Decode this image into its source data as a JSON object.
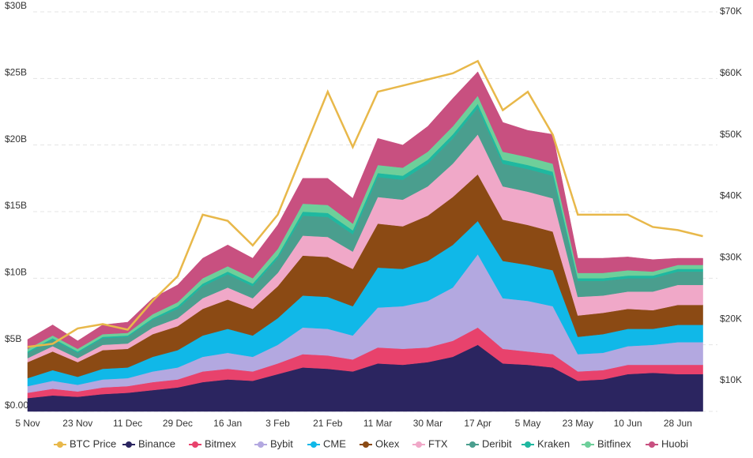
{
  "chart_data": {
    "type": "area",
    "categories": [
      "5 Nov",
      null,
      "23 Nov",
      null,
      "11 Dec",
      null,
      "29 Dec",
      null,
      "16 Jan",
      null,
      "3 Feb",
      null,
      "21 Feb",
      null,
      "11 Mar",
      null,
      "30 Mar",
      null,
      "17 Apr",
      null,
      "5 May",
      null,
      "23 May",
      null,
      "10 Jun",
      null,
      "28 Jun",
      null
    ],
    "ylim": [
      0,
      30
    ],
    "yticks": [
      {
        "value": 0,
        "label": "$0.00"
      },
      {
        "value": 5,
        "label": "$5B"
      },
      {
        "value": 10,
        "label": "$10B"
      },
      {
        "value": 15,
        "label": "$15B"
      },
      {
        "value": 20,
        "label": "$20B"
      },
      {
        "value": 25,
        "label": "$25B"
      },
      {
        "value": 30,
        "label": "$30B"
      }
    ],
    "y2lim": [
      5000,
      70000
    ],
    "y2ticks": [
      {
        "value": 10000,
        "label": "$10K"
      },
      {
        "value": 20000,
        "label": "$20K"
      },
      {
        "value": 30000,
        "label": "$30K"
      },
      {
        "value": 40000,
        "label": "$40K"
      },
      {
        "value": 50000,
        "label": "$50K"
      },
      {
        "value": 60000,
        "label": "$60K"
      },
      {
        "value": 70000,
        "label": "$70K"
      }
    ],
    "grid": true,
    "stacked": true,
    "series": [
      {
        "name": "BTC Price",
        "color": "#e8b84a",
        "axis": "y2",
        "values": [
          15500,
          16000,
          18500,
          19200,
          18300,
          23000,
          27000,
          37000,
          36000,
          32000,
          37000,
          47000,
          57000,
          48000,
          57000,
          58000,
          59000,
          60000,
          62000,
          54000,
          57000,
          50000,
          37000,
          37000,
          37000,
          35000,
          34500,
          33500
        ]
      },
      {
        "name": "Binance",
        "color": "#2b2560",
        "values": [
          1.0,
          1.2,
          1.1,
          1.3,
          1.4,
          1.6,
          1.8,
          2.2,
          2.4,
          2.3,
          2.8,
          3.3,
          3.2,
          3.0,
          3.6,
          3.5,
          3.7,
          4.1,
          5.0,
          3.6,
          3.5,
          3.3,
          2.3,
          2.4,
          2.8,
          2.9,
          2.8,
          2.8
        ]
      },
      {
        "name": "Bitmex",
        "color": "#e8426c",
        "values": [
          0.4,
          0.5,
          0.4,
          0.5,
          0.5,
          0.6,
          0.6,
          0.8,
          0.8,
          0.7,
          0.8,
          1.0,
          1.0,
          0.9,
          1.2,
          1.2,
          1.1,
          1.2,
          1.3,
          1.1,
          1.0,
          1.0,
          0.7,
          0.7,
          0.7,
          0.6,
          0.7,
          0.7
        ]
      },
      {
        "name": "Bybit",
        "color": "#b3a8e0",
        "values": [
          0.5,
          0.6,
          0.5,
          0.6,
          0.6,
          0.8,
          0.9,
          1.1,
          1.2,
          1.1,
          1.4,
          2.0,
          2.0,
          1.8,
          3.0,
          3.2,
          3.5,
          4.0,
          5.5,
          3.8,
          3.8,
          3.6,
          1.3,
          1.3,
          1.4,
          1.5,
          1.7,
          1.7
        ]
      },
      {
        "name": "CME",
        "color": "#10b8e8",
        "values": [
          0.6,
          0.8,
          0.6,
          0.8,
          0.8,
          1.1,
          1.3,
          1.6,
          1.8,
          1.6,
          2.0,
          2.4,
          2.4,
          2.2,
          3.0,
          2.8,
          3.0,
          3.2,
          2.5,
          2.8,
          2.7,
          2.7,
          1.3,
          1.4,
          1.3,
          1.2,
          1.3,
          1.3
        ]
      },
      {
        "name": "Okex",
        "color": "#8b4a14",
        "values": [
          1.2,
          1.4,
          1.1,
          1.4,
          1.4,
          1.7,
          1.8,
          2.0,
          2.2,
          2.0,
          2.4,
          3.0,
          3.0,
          2.8,
          3.3,
          3.2,
          3.4,
          3.6,
          3.5,
          3.1,
          3.0,
          2.9,
          1.6,
          1.6,
          1.5,
          1.4,
          1.5,
          1.5
        ]
      },
      {
        "name": "FTX",
        "color": "#f0a8c8",
        "values": [
          0.3,
          0.4,
          0.3,
          0.4,
          0.4,
          0.5,
          0.6,
          0.8,
          0.9,
          0.8,
          1.0,
          1.5,
          1.5,
          1.3,
          2.0,
          2.0,
          2.2,
          2.5,
          3.0,
          2.5,
          2.5,
          2.5,
          1.4,
          1.3,
          1.3,
          1.4,
          1.5,
          1.5
        ]
      },
      {
        "name": "Deribit",
        "color": "#4a9e8e",
        "values": [
          0.4,
          0.5,
          0.4,
          0.5,
          0.5,
          0.6,
          0.7,
          0.9,
          1.0,
          0.9,
          1.1,
          1.5,
          1.5,
          1.3,
          1.5,
          1.5,
          1.7,
          1.9,
          2.0,
          1.7,
          1.7,
          1.7,
          1.2,
          1.1,
          1.0,
          1.0,
          1.0,
          1.0
        ]
      },
      {
        "name": "Kraken",
        "color": "#1fb8a0",
        "values": [
          0.1,
          0.1,
          0.1,
          0.1,
          0.1,
          0.1,
          0.2,
          0.2,
          0.2,
          0.2,
          0.2,
          0.3,
          0.3,
          0.3,
          0.3,
          0.3,
          0.3,
          0.3,
          0.3,
          0.3,
          0.3,
          0.3,
          0.2,
          0.2,
          0.2,
          0.2,
          0.2,
          0.2
        ]
      },
      {
        "name": "Bitfinex",
        "color": "#6ecf9a",
        "values": [
          0.2,
          0.2,
          0.2,
          0.2,
          0.2,
          0.3,
          0.3,
          0.4,
          0.4,
          0.4,
          0.5,
          0.6,
          0.6,
          0.5,
          0.6,
          0.6,
          0.6,
          0.6,
          0.6,
          0.6,
          0.6,
          0.6,
          0.4,
          0.4,
          0.4,
          0.3,
          0.3,
          0.3
        ]
      },
      {
        "name": "Huobi",
        "color": "#c85080",
        "values": [
          0.7,
          0.8,
          0.6,
          0.7,
          0.8,
          1.2,
          1.3,
          1.5,
          1.6,
          1.5,
          1.8,
          1.9,
          2.0,
          1.9,
          2.0,
          1.7,
          1.9,
          2.1,
          1.8,
          2.2,
          2.0,
          2.2,
          1.1,
          1.1,
          1.0,
          0.9,
          0.5,
          0.5
        ]
      }
    ]
  }
}
